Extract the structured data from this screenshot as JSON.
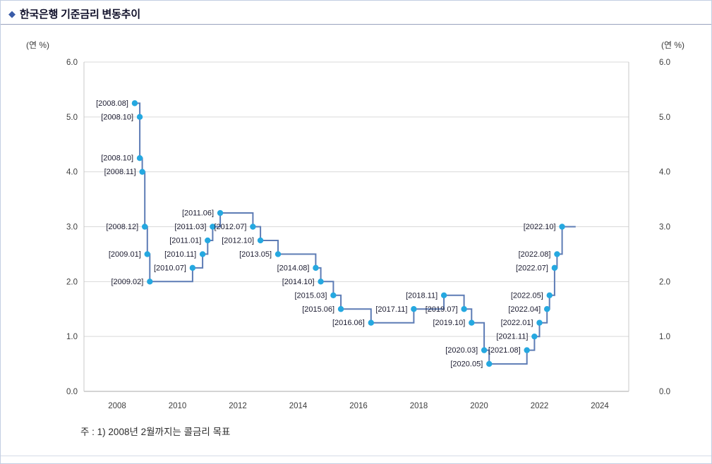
{
  "title_icon": "◆",
  "title": "한국은행 기준금리 변동추이",
  "unit_label_left": "(연 %)",
  "unit_label_right": "(연 %)",
  "footnote": "주 : 1) 2008년 2월까지는 콜금리 목표",
  "colors": {
    "line": "#5d7cb5",
    "dot": "#25a8e0",
    "grid": "#d9d9d9",
    "axis_line": "#aaaaaa",
    "plot_border": "#c8c8c8",
    "axis_text": "#3d3d3d",
    "point_label": "#1b1b30",
    "diamond": "#3a5ca8",
    "title_text": "#10102a"
  },
  "chart_data": {
    "type": "line",
    "subtype": "step",
    "title": "한국은행 기준금리 변동추이",
    "ylabel": "(연 %)",
    "ylim": [
      0.0,
      6.0
    ],
    "y_tick_step": 1.0,
    "x_ticks": [
      2008,
      2010,
      2012,
      2014,
      2016,
      2018,
      2020,
      2022,
      2024
    ],
    "grid": "horizontal",
    "extend_to_year": 2023.2,
    "points": [
      {
        "date": "2008.08",
        "rate": 5.25
      },
      {
        "date": "2008.10",
        "rate": 5.0
      },
      {
        "date": "2008.10",
        "rate": 4.25
      },
      {
        "date": "2008.11",
        "rate": 4.0
      },
      {
        "date": "2008.12",
        "rate": 3.0
      },
      {
        "date": "2009.01",
        "rate": 2.5
      },
      {
        "date": "2009.02",
        "rate": 2.0
      },
      {
        "date": "2010.07",
        "rate": 2.25
      },
      {
        "date": "2010.11",
        "rate": 2.5
      },
      {
        "date": "2011.01",
        "rate": 2.75
      },
      {
        "date": "2011.03",
        "rate": 3.0
      },
      {
        "date": "2011.06",
        "rate": 3.25
      },
      {
        "date": "2012.07",
        "rate": 3.0
      },
      {
        "date": "2012.10",
        "rate": 2.75
      },
      {
        "date": "2013.05",
        "rate": 2.5
      },
      {
        "date": "2014.08",
        "rate": 2.25
      },
      {
        "date": "2014.10",
        "rate": 2.0
      },
      {
        "date": "2015.03",
        "rate": 1.75
      },
      {
        "date": "2015.06",
        "rate": 1.5
      },
      {
        "date": "2016.06",
        "rate": 1.25
      },
      {
        "date": "2017.11",
        "rate": 1.5
      },
      {
        "date": "2018.11",
        "rate": 1.75
      },
      {
        "date": "2019.07",
        "rate": 1.5
      },
      {
        "date": "2019.10",
        "rate": 1.25
      },
      {
        "date": "2020.03",
        "rate": 0.75
      },
      {
        "date": "2020.05",
        "rate": 0.5
      },
      {
        "date": "2021.08",
        "rate": 0.75
      },
      {
        "date": "2021.11",
        "rate": 1.0
      },
      {
        "date": "2022.01",
        "rate": 1.25
      },
      {
        "date": "2022.04",
        "rate": 1.5
      },
      {
        "date": "2022.05",
        "rate": 1.75
      },
      {
        "date": "2022.07",
        "rate": 2.25
      },
      {
        "date": "2022.08",
        "rate": 2.5
      },
      {
        "date": "2022.10",
        "rate": 3.0
      }
    ]
  }
}
